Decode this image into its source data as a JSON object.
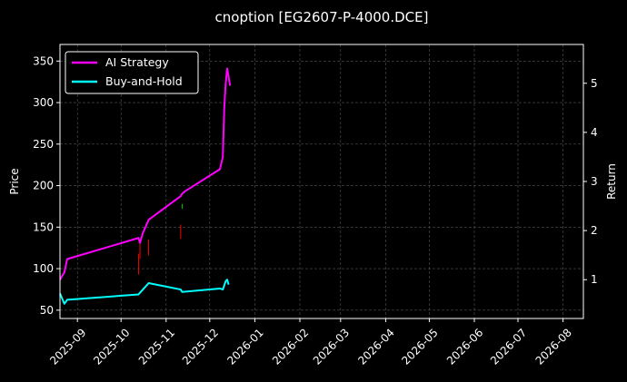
{
  "chart_data": {
    "type": "line",
    "title": "cnoption [EG2607-P-4000.DCE]",
    "xlabel": "",
    "ylabel": "Price",
    "y2label": "Return",
    "x_range": [
      "2025-08-20",
      "2026-08-15"
    ],
    "ylim": [
      40,
      370
    ],
    "y2lim": [
      0.21,
      5.79
    ],
    "grid": true,
    "legend_position": "top-left",
    "x_ticks": [
      "2025-09",
      "2025-10",
      "2025-11",
      "2025-12",
      "2026-01",
      "2026-02",
      "2026-03",
      "2026-04",
      "2026-05",
      "2026-06",
      "2026-07",
      "2026-08"
    ],
    "x_tick_dates": [
      "2025-09-01",
      "2025-10-01",
      "2025-11-01",
      "2025-12-01",
      "2026-01-01",
      "2026-02-01",
      "2026-03-01",
      "2026-04-01",
      "2026-05-01",
      "2026-06-01",
      "2026-07-01",
      "2026-08-01"
    ],
    "y_ticks": [
      50,
      100,
      150,
      200,
      250,
      300,
      350
    ],
    "y2_ticks": [
      1,
      2,
      3,
      4,
      5
    ],
    "series": [
      {
        "name": "AI Strategy",
        "color": "#ff00ff",
        "axis": "right",
        "points": [
          [
            "2025-08-20",
            1.0
          ],
          [
            "2025-08-23",
            1.15
          ],
          [
            "2025-08-25",
            1.42
          ],
          [
            "2025-10-13",
            1.85
          ],
          [
            "2025-10-14",
            1.75
          ],
          [
            "2025-10-16",
            1.95
          ],
          [
            "2025-10-20",
            2.22
          ],
          [
            "2025-11-11",
            2.7
          ],
          [
            "2025-11-12",
            2.75
          ],
          [
            "2025-11-14",
            2.8
          ],
          [
            "2025-12-08",
            3.25
          ],
          [
            "2025-12-10",
            3.5
          ],
          [
            "2025-12-11",
            4.5
          ],
          [
            "2025-12-12",
            5.0
          ],
          [
            "2025-12-13",
            5.3
          ],
          [
            "2025-12-14",
            5.13
          ],
          [
            "2025-12-15",
            4.95
          ]
        ]
      },
      {
        "name": "Buy-and-Hold",
        "color": "#00ffff",
        "axis": "right",
        "points": [
          [
            "2025-08-20",
            0.72
          ],
          [
            "2025-08-23",
            0.51
          ],
          [
            "2025-08-25",
            0.59
          ],
          [
            "2025-10-13",
            0.7
          ],
          [
            "2025-10-20",
            0.93
          ],
          [
            "2025-11-11",
            0.8
          ],
          [
            "2025-11-12",
            0.75
          ],
          [
            "2025-12-08",
            0.82
          ],
          [
            "2025-12-10",
            0.8
          ],
          [
            "2025-12-12",
            0.97
          ],
          [
            "2025-12-13",
            1.0
          ],
          [
            "2025-12-14",
            0.9
          ]
        ]
      }
    ],
    "price_bars": [
      {
        "date": "2025-10-13",
        "low": 93,
        "high": 118,
        "color": "#ff0000"
      },
      {
        "date": "2025-10-14",
        "low": 112,
        "high": 133,
        "color": "#ff0000"
      },
      {
        "date": "2025-10-20",
        "low": 116,
        "high": 135,
        "color": "#ff0000"
      },
      {
        "date": "2025-11-11",
        "low": 136,
        "high": 153,
        "color": "#ff0000"
      },
      {
        "date": "2025-11-12",
        "low": 172,
        "high": 178,
        "color": "#00cc00"
      }
    ]
  }
}
